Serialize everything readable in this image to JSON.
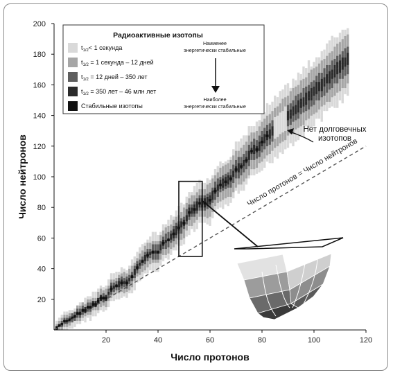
{
  "chart_data": {
    "type": "scatter",
    "xlabel": "Число протонов",
    "ylabel": "Число нейтронов",
    "xlim": [
      0,
      120
    ],
    "ylim": [
      0,
      200
    ],
    "x_ticks": [
      "20",
      "40",
      "60",
      "80",
      "100",
      "120"
    ],
    "y_ticks": [
      "20",
      "40",
      "60",
      "80",
      "100",
      "120",
      "140",
      "160",
      "180",
      "200"
    ],
    "grid": false,
    "legend": {
      "title": "Радиоактивные изотопы",
      "placement": "top-left",
      "entries": [
        {
          "sub": "1/2",
          "label": "< 1 секунда",
          "color": "#d9d9d9"
        },
        {
          "sub": "1/2",
          "label": " = 1 секунда – 12 дней",
          "color": "#a6a6a6"
        },
        {
          "sub": "1/2",
          "label": " = 12 дней – 350 лет",
          "color": "#5f5f5f"
        },
        {
          "sub": "1/2",
          "label": " = 350 лет – 46 млн лет",
          "color": "#2b2b2b"
        },
        {
          "sub": "",
          "label": "Стабильные изотопы",
          "color": "#111111"
        }
      ],
      "top_note": [
        "Наименее",
        "энергетически стабильные"
      ],
      "bottom_note": [
        "Наиболее",
        "энергетически стабильные"
      ]
    },
    "annotations": {
      "gap": [
        "Нет долговечных",
        "изотопов"
      ],
      "diagonal": "Число протонов = Числo нейтронов"
    },
    "reference_line": {
      "x": [
        0,
        120
      ],
      "y": [
        0,
        120
      ],
      "style": "dashed"
    },
    "stable_points": [
      [
        1,
        0
      ],
      [
        1,
        1
      ],
      [
        2,
        2
      ],
      [
        3,
        3
      ],
      [
        4,
        5
      ],
      [
        5,
        5
      ],
      [
        6,
        6
      ],
      [
        7,
        7
      ],
      [
        8,
        8
      ],
      [
        9,
        10
      ],
      [
        10,
        10
      ],
      [
        11,
        12
      ],
      [
        12,
        12
      ],
      [
        13,
        14
      ],
      [
        14,
        14
      ],
      [
        15,
        16
      ],
      [
        16,
        16
      ],
      [
        17,
        18
      ],
      [
        18,
        20
      ],
      [
        19,
        20
      ],
      [
        20,
        20
      ],
      [
        22,
        26
      ],
      [
        24,
        28
      ],
      [
        26,
        30
      ],
      [
        28,
        30
      ],
      [
        30,
        34
      ],
      [
        32,
        40
      ],
      [
        34,
        44
      ],
      [
        36,
        48
      ],
      [
        38,
        50
      ],
      [
        40,
        50
      ],
      [
        42,
        56
      ],
      [
        44,
        58
      ],
      [
        46,
        62
      ],
      [
        48,
        66
      ],
      [
        50,
        69
      ],
      [
        52,
        76
      ],
      [
        54,
        78
      ],
      [
        56,
        82
      ],
      [
        58,
        82
      ],
      [
        60,
        84
      ],
      [
        62,
        90
      ],
      [
        64,
        94
      ],
      [
        66,
        96
      ],
      [
        68,
        98
      ],
      [
        70,
        104
      ],
      [
        72,
        106
      ],
      [
        74,
        110
      ],
      [
        76,
        116
      ],
      [
        78,
        117
      ],
      [
        80,
        122
      ],
      [
        82,
        126
      ]
    ]
  },
  "schematic": {
    "box_x": [
      48,
      57
    ],
    "box_y": [
      48,
      97
    ]
  }
}
